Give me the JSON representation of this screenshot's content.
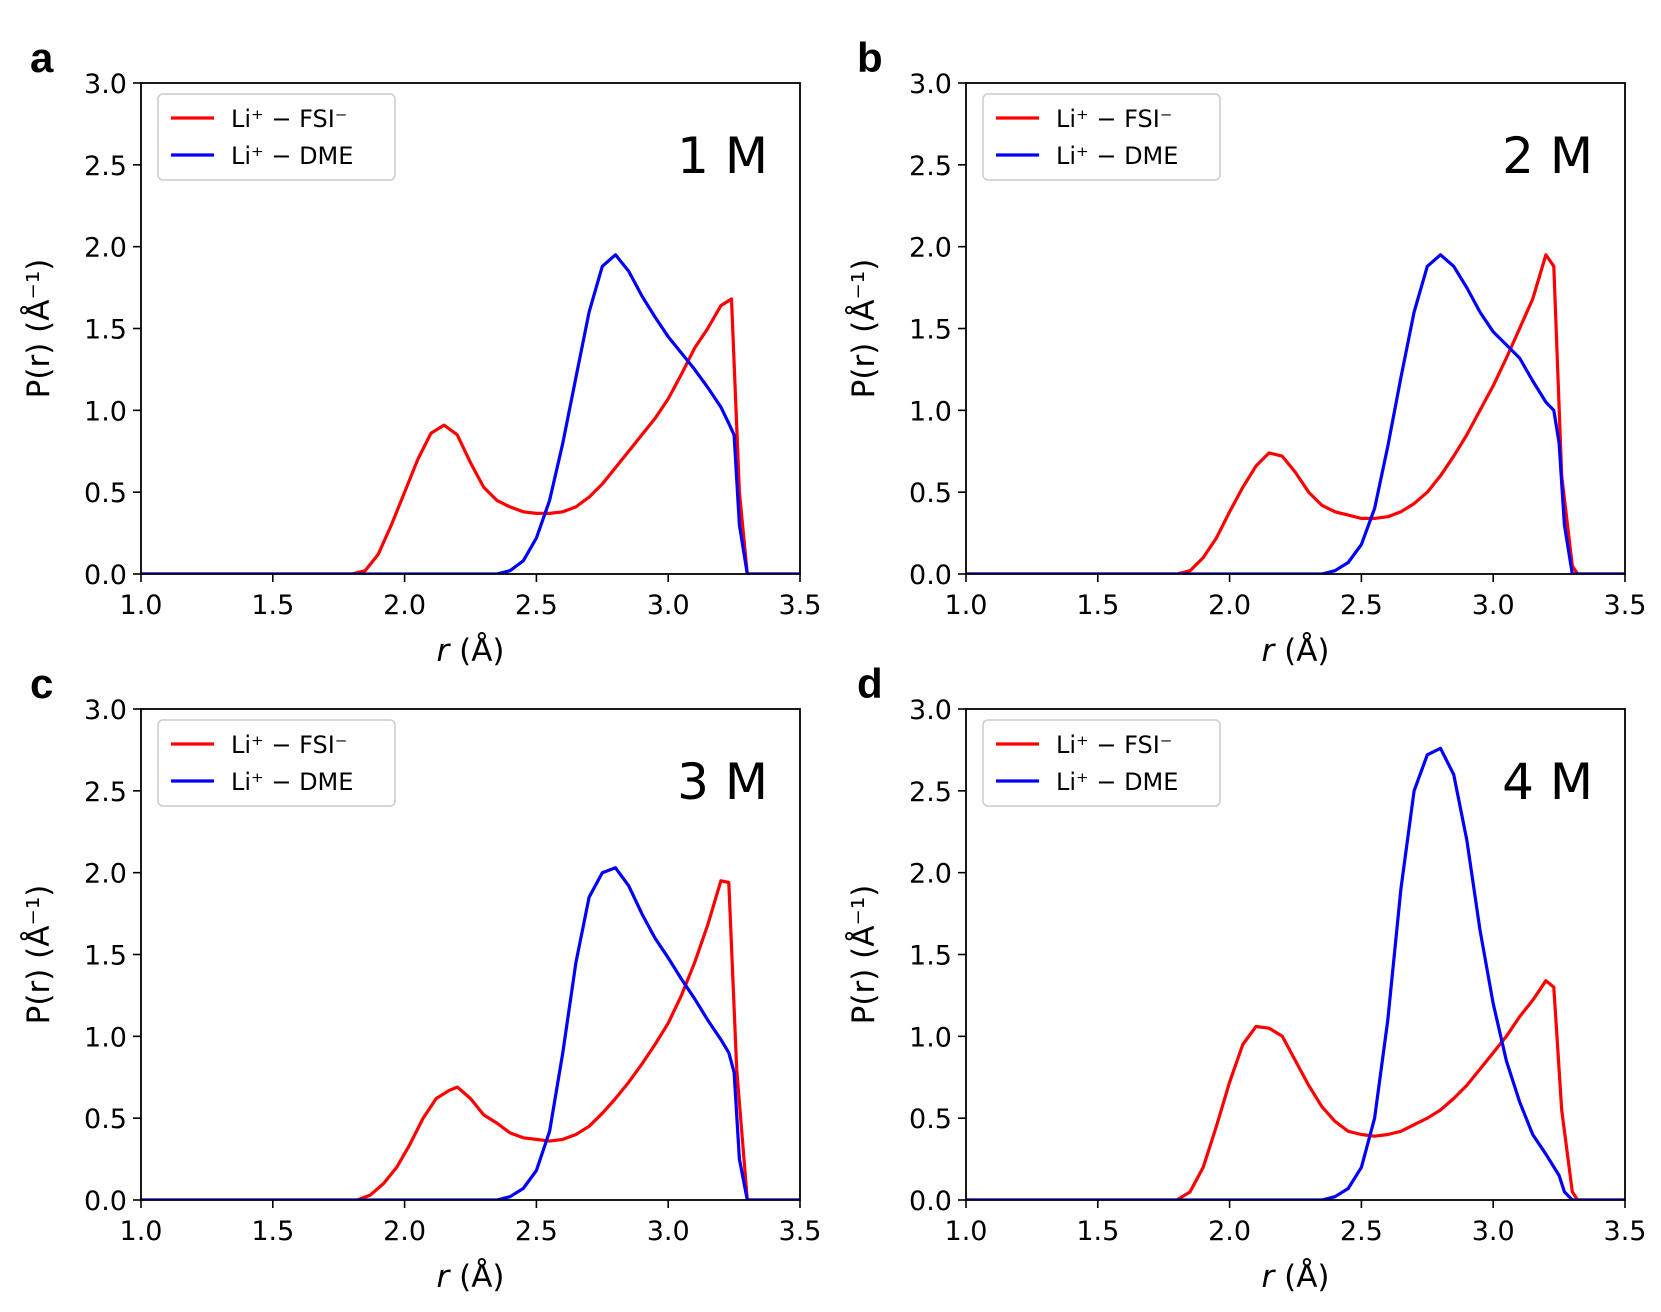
{
  "chart_data": [
    {
      "type": "line",
      "panel_letter": "a",
      "annotation": "1 M",
      "xlabel_var": "r",
      "xlabel_unit": " (Å)",
      "ylabel": "P(r) (Å⁻¹)",
      "xlim": [
        1.0,
        3.5
      ],
      "ylim": [
        0.0,
        3.0
      ],
      "xticks": [
        "1.0",
        "1.5",
        "2.0",
        "2.5",
        "3.0",
        "3.5"
      ],
      "yticks": [
        "0.0",
        "0.5",
        "1.0",
        "1.5",
        "2.0",
        "2.5",
        "3.0"
      ],
      "legend": [
        "Li⁺ − FSI⁻",
        "Li⁺ − DME"
      ],
      "series": [
        {
          "name": "Li⁺ − FSI⁻",
          "color": "#ff0000",
          "x": [
            1.0,
            1.8,
            1.85,
            1.9,
            1.95,
            2.0,
            2.05,
            2.1,
            2.15,
            2.2,
            2.25,
            2.3,
            2.35,
            2.4,
            2.45,
            2.5,
            2.55,
            2.6,
            2.65,
            2.7,
            2.75,
            2.8,
            2.85,
            2.9,
            2.95,
            3.0,
            3.05,
            3.1,
            3.15,
            3.2,
            3.24,
            3.27,
            3.3,
            3.5
          ],
          "y": [
            0,
            0,
            0.02,
            0.12,
            0.3,
            0.5,
            0.7,
            0.86,
            0.91,
            0.85,
            0.68,
            0.53,
            0.45,
            0.41,
            0.38,
            0.37,
            0.37,
            0.38,
            0.41,
            0.47,
            0.55,
            0.65,
            0.75,
            0.85,
            0.95,
            1.07,
            1.22,
            1.38,
            1.5,
            1.64,
            1.68,
            0.5,
            0,
            0
          ]
        },
        {
          "name": "Li⁺ − DME",
          "color": "#0000ff",
          "x": [
            1.0,
            2.35,
            2.4,
            2.45,
            2.5,
            2.55,
            2.6,
            2.65,
            2.7,
            2.75,
            2.8,
            2.85,
            2.9,
            2.95,
            3.0,
            3.05,
            3.1,
            3.15,
            3.2,
            3.23,
            3.25,
            3.27,
            3.3,
            3.5
          ],
          "y": [
            0,
            0,
            0.02,
            0.08,
            0.22,
            0.45,
            0.8,
            1.2,
            1.6,
            1.88,
            1.95,
            1.85,
            1.7,
            1.57,
            1.45,
            1.35,
            1.25,
            1.14,
            1.02,
            0.92,
            0.85,
            0.3,
            0,
            0
          ]
        }
      ]
    },
    {
      "type": "line",
      "panel_letter": "b",
      "annotation": "2 M",
      "xlabel_var": "r",
      "xlabel_unit": " (Å)",
      "ylabel": "P(r) (Å⁻¹)",
      "xlim": [
        1.0,
        3.5
      ],
      "ylim": [
        0.0,
        3.0
      ],
      "xticks": [
        "1.0",
        "1.5",
        "2.0",
        "2.5",
        "3.0",
        "3.5"
      ],
      "yticks": [
        "0.0",
        "0.5",
        "1.0",
        "1.5",
        "2.0",
        "2.5",
        "3.0"
      ],
      "legend": [
        "Li⁺ − FSI⁻",
        "Li⁺ − DME"
      ],
      "series": [
        {
          "name": "Li⁺ − FSI⁻",
          "color": "#ff0000",
          "x": [
            1.0,
            1.8,
            1.85,
            1.9,
            1.95,
            2.0,
            2.05,
            2.1,
            2.15,
            2.2,
            2.25,
            2.3,
            2.35,
            2.4,
            2.45,
            2.5,
            2.55,
            2.6,
            2.65,
            2.7,
            2.75,
            2.8,
            2.85,
            2.9,
            2.95,
            3.0,
            3.05,
            3.1,
            3.15,
            3.2,
            3.23,
            3.26,
            3.3,
            3.32,
            3.5
          ],
          "y": [
            0,
            0,
            0.02,
            0.1,
            0.22,
            0.38,
            0.53,
            0.66,
            0.74,
            0.72,
            0.62,
            0.5,
            0.42,
            0.38,
            0.36,
            0.34,
            0.34,
            0.35,
            0.38,
            0.43,
            0.5,
            0.6,
            0.72,
            0.85,
            1.0,
            1.15,
            1.32,
            1.5,
            1.68,
            1.95,
            1.88,
            0.6,
            0.05,
            0,
            0
          ]
        },
        {
          "name": "Li⁺ − DME",
          "color": "#0000ff",
          "x": [
            1.0,
            2.35,
            2.4,
            2.45,
            2.5,
            2.55,
            2.6,
            2.65,
            2.7,
            2.75,
            2.8,
            2.85,
            2.9,
            2.95,
            3.0,
            3.05,
            3.1,
            3.15,
            3.2,
            3.23,
            3.25,
            3.27,
            3.3,
            3.5
          ],
          "y": [
            0,
            0,
            0.02,
            0.07,
            0.18,
            0.4,
            0.78,
            1.2,
            1.6,
            1.88,
            1.95,
            1.88,
            1.75,
            1.6,
            1.48,
            1.4,
            1.32,
            1.18,
            1.05,
            1.0,
            0.8,
            0.3,
            0,
            0
          ]
        }
      ]
    },
    {
      "type": "line",
      "panel_letter": "c",
      "annotation": "3 M",
      "xlabel_var": "r",
      "xlabel_unit": " (Å)",
      "ylabel": "P(r) (Å⁻¹)",
      "xlim": [
        1.0,
        3.5
      ],
      "ylim": [
        0.0,
        3.0
      ],
      "xticks": [
        "1.0",
        "1.5",
        "2.0",
        "2.5",
        "3.0",
        "3.5"
      ],
      "yticks": [
        "0.0",
        "0.5",
        "1.0",
        "1.5",
        "2.0",
        "2.5",
        "3.0"
      ],
      "legend": [
        "Li⁺ − FSI⁻",
        "Li⁺ − DME"
      ],
      "series": [
        {
          "name": "Li⁺ − FSI⁻",
          "color": "#ff0000",
          "x": [
            1.0,
            1.82,
            1.87,
            1.92,
            1.97,
            2.02,
            2.07,
            2.12,
            2.17,
            2.2,
            2.25,
            2.3,
            2.35,
            2.4,
            2.45,
            2.5,
            2.55,
            2.6,
            2.65,
            2.7,
            2.75,
            2.8,
            2.85,
            2.9,
            2.95,
            3.0,
            3.05,
            3.1,
            3.15,
            3.2,
            3.23,
            3.26,
            3.3,
            3.5
          ],
          "y": [
            0,
            0,
            0.03,
            0.1,
            0.2,
            0.34,
            0.5,
            0.62,
            0.67,
            0.69,
            0.62,
            0.52,
            0.47,
            0.41,
            0.38,
            0.37,
            0.36,
            0.37,
            0.4,
            0.45,
            0.53,
            0.62,
            0.72,
            0.83,
            0.95,
            1.08,
            1.25,
            1.45,
            1.68,
            1.95,
            1.94,
            0.8,
            0,
            0
          ]
        },
        {
          "name": "Li⁺ − DME",
          "color": "#0000ff",
          "x": [
            1.0,
            2.35,
            2.4,
            2.45,
            2.5,
            2.55,
            2.6,
            2.65,
            2.7,
            2.75,
            2.8,
            2.85,
            2.9,
            2.95,
            3.0,
            3.05,
            3.1,
            3.15,
            3.2,
            3.23,
            3.25,
            3.27,
            3.3,
            3.5
          ],
          "y": [
            0,
            0,
            0.02,
            0.07,
            0.18,
            0.42,
            0.9,
            1.45,
            1.85,
            2.0,
            2.03,
            1.92,
            1.75,
            1.6,
            1.48,
            1.35,
            1.23,
            1.1,
            0.98,
            0.9,
            0.78,
            0.25,
            0,
            0
          ]
        }
      ]
    },
    {
      "type": "line",
      "panel_letter": "d",
      "annotation": "4 M",
      "xlabel_var": "r",
      "xlabel_unit": " (Å)",
      "ylabel": "P(r) (Å⁻¹)",
      "xlim": [
        1.0,
        3.5
      ],
      "ylim": [
        0.0,
        3.0
      ],
      "xticks": [
        "1.0",
        "1.5",
        "2.0",
        "2.5",
        "3.0",
        "3.5"
      ],
      "yticks": [
        "0.0",
        "0.5",
        "1.0",
        "1.5",
        "2.0",
        "2.5",
        "3.0"
      ],
      "legend": [
        "Li⁺ − FSI⁻",
        "Li⁺ − DME"
      ],
      "series": [
        {
          "name": "Li⁺ − FSI⁻",
          "color": "#ff0000",
          "x": [
            1.0,
            1.8,
            1.85,
            1.9,
            1.95,
            2.0,
            2.05,
            2.1,
            2.15,
            2.2,
            2.25,
            2.3,
            2.35,
            2.4,
            2.45,
            2.5,
            2.55,
            2.6,
            2.65,
            2.7,
            2.75,
            2.8,
            2.85,
            2.9,
            2.95,
            3.0,
            3.05,
            3.1,
            3.15,
            3.2,
            3.23,
            3.26,
            3.3,
            3.32,
            3.5
          ],
          "y": [
            0,
            0,
            0.05,
            0.2,
            0.45,
            0.72,
            0.95,
            1.06,
            1.05,
            1.0,
            0.85,
            0.7,
            0.57,
            0.48,
            0.42,
            0.4,
            0.39,
            0.4,
            0.42,
            0.46,
            0.5,
            0.55,
            0.62,
            0.7,
            0.8,
            0.9,
            1.0,
            1.12,
            1.22,
            1.34,
            1.3,
            0.55,
            0.05,
            0,
            0
          ]
        },
        {
          "name": "Li⁺ − DME",
          "color": "#0000ff",
          "x": [
            1.0,
            2.35,
            2.4,
            2.45,
            2.5,
            2.55,
            2.6,
            2.65,
            2.7,
            2.75,
            2.8,
            2.85,
            2.9,
            2.95,
            3.0,
            3.05,
            3.1,
            3.15,
            3.2,
            3.25,
            3.27,
            3.3,
            3.5
          ],
          "y": [
            0,
            0,
            0.02,
            0.07,
            0.2,
            0.5,
            1.1,
            1.9,
            2.5,
            2.72,
            2.76,
            2.6,
            2.2,
            1.65,
            1.2,
            0.85,
            0.6,
            0.4,
            0.28,
            0.15,
            0.05,
            0,
            0
          ]
        }
      ]
    }
  ]
}
